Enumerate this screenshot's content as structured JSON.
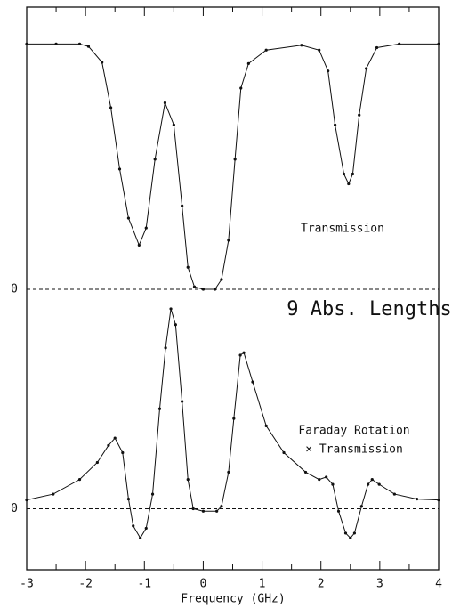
{
  "chart_data": [
    {
      "type": "line",
      "x": [
        -3,
        -2.5,
        -2.1,
        -1.95,
        -1.72,
        -1.57,
        -1.42,
        -1.27,
        -1.09,
        -0.97,
        -0.82,
        -0.65,
        -0.5,
        -0.36,
        -0.26,
        -0.15,
        0,
        0.2,
        0.31,
        0.43,
        0.54,
        0.64,
        0.77,
        1.07,
        1.67,
        1.97,
        2.12,
        2.24,
        2.39,
        2.47,
        2.54,
        2.65,
        2.77,
        2.95,
        3.33,
        4
      ],
      "series": [
        {
          "color": "#111111",
          "values": [
            1.0,
            1.0,
            1.0,
            0.99,
            0.925,
            0.74,
            0.49,
            0.29,
            0.18,
            0.25,
            0.53,
            0.76,
            0.67,
            0.34,
            0.09,
            0.01,
            0,
            0,
            0.04,
            0.2,
            0.53,
            0.82,
            0.92,
            0.975,
            0.995,
            0.975,
            0.89,
            0.67,
            0.47,
            0.43,
            0.47,
            0.71,
            0.9,
            0.985,
            1.0,
            1.0
          ]
        }
      ],
      "xlim": [
        -3,
        4
      ],
      "ylim": [
        0,
        1.15
      ],
      "yticks": [
        0
      ],
      "annotations": [
        "Transmission",
        "9 Abs. Lengths"
      ]
    },
    {
      "type": "line",
      "x": [
        -3,
        -2.55,
        -2.1,
        -1.8,
        -1.61,
        -1.5,
        -1.37,
        -1.27,
        -1.19,
        -1.07,
        -0.97,
        -0.86,
        -0.74,
        -0.64,
        -0.55,
        -0.47,
        -0.36,
        -0.26,
        -0.17,
        0,
        0.23,
        0.31,
        0.43,
        0.52,
        0.63,
        0.69,
        0.84,
        1.07,
        1.37,
        1.74,
        1.97,
        2.09,
        2.2,
        2.3,
        2.42,
        2.5,
        2.57,
        2.69,
        2.8,
        2.87,
        2.99,
        3.25,
        3.63,
        4
      ],
      "series": [
        {
          "color": "#111111",
          "values": [
            0.036,
            0.06,
            0.12,
            0.19,
            0.26,
            0.29,
            0.23,
            0.04,
            -0.07,
            -0.12,
            -0.08,
            0.06,
            0.41,
            0.66,
            0.82,
            0.755,
            0.44,
            0.12,
            0,
            -0.01,
            -0.01,
            0.01,
            0.15,
            0.37,
            0.63,
            0.64,
            0.52,
            0.34,
            0.23,
            0.15,
            0.12,
            0.13,
            0.1,
            -0.01,
            -0.1,
            -0.12,
            -0.1,
            0.01,
            0.1,
            0.12,
            0.1,
            0.06,
            0.04,
            0.036
          ]
        }
      ],
      "xlim": [
        -3,
        4
      ],
      "ylim": [
        -0.25,
        0.9
      ],
      "yticks": [
        0
      ],
      "xticks": [
        -3,
        -2,
        -1,
        0,
        1,
        2,
        3,
        4
      ],
      "xminor": [
        -2.5,
        -1.5,
        -0.5,
        0.5,
        1.5,
        2.5,
        3.5
      ],
      "xlabel": "Frequency (GHz)",
      "annotations": [
        "Faraday Rotation",
        "× Transmission"
      ]
    }
  ]
}
